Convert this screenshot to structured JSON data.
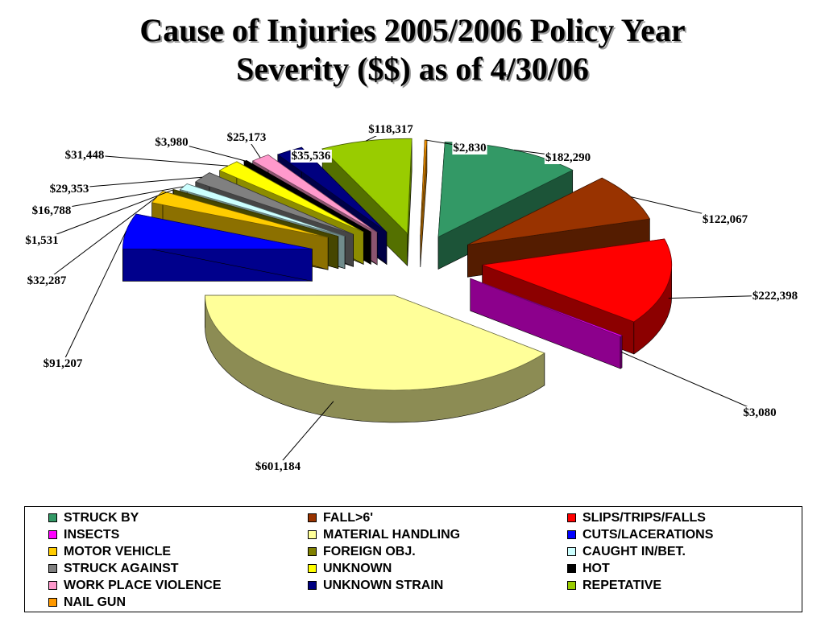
{
  "title_line1": "Cause of Injuries 2005/2006 Policy Year",
  "title_line2": "Severity ($$) as of 4/30/06",
  "chart_data": {
    "type": "pie",
    "title": "Cause of Injuries 2005/2006 Policy Year Severity ($$) as of 4/30/06",
    "legend_position": "bottom",
    "slices": [
      {
        "name": "STRUCK BY",
        "value": 182290,
        "label": "$182,290",
        "color": "#339966"
      },
      {
        "name": "FALL>6'",
        "value": 122067,
        "label": "$122,067",
        "color": "#993300"
      },
      {
        "name": "SLIPS/TRIPS/FALLS",
        "value": 222398,
        "label": "$222,398",
        "color": "#ff0000"
      },
      {
        "name": "INSECTS",
        "value": 3080,
        "label": "$3,080",
        "color": "#ff00ff"
      },
      {
        "name": "MATERIAL HANDLING",
        "value": 601184,
        "label": "$601,184",
        "color": "#ffff99"
      },
      {
        "name": "CUTS/LACERATIONS",
        "value": 91207,
        "label": "$91,207",
        "color": "#0000ff"
      },
      {
        "name": "MOTOR VEHICLE",
        "value": 32287,
        "label": "$32,287",
        "color": "#ffcc00"
      },
      {
        "name": "FOREIGN OBJ.",
        "value": 1531,
        "label": "$1,531",
        "color": "#808000"
      },
      {
        "name": "CAUGHT IN/BET.",
        "value": 16788,
        "label": "$16,788",
        "color": "#ccffff"
      },
      {
        "name": "STRUCK AGAINST",
        "value": 29353,
        "label": "$29,353",
        "color": "#808080"
      },
      {
        "name": "UNKNOWN",
        "value": 31448,
        "label": "$31,448",
        "color": "#ffff00"
      },
      {
        "name": "HOT",
        "value": 3980,
        "label": "$3,980",
        "color": "#000000"
      },
      {
        "name": "WORK PLACE VIOLENCE",
        "value": 25173,
        "label": "$25,173",
        "color": "#ff99cc"
      },
      {
        "name": "UNKNOWN STRAIN",
        "value": 35536,
        "label": "$35,536",
        "color": "#000080"
      },
      {
        "name": "REPETATIVE",
        "value": 118317,
        "label": "$118,317",
        "color": "#99cc00"
      },
      {
        "name": "NAIL GUN",
        "value": 2830,
        "label": "$2,830",
        "color": "#ff9900"
      }
    ]
  },
  "legend": [
    {
      "label": "STRUCK BY",
      "color": "#339966"
    },
    {
      "label": "FALL>6'",
      "color": "#993300"
    },
    {
      "label": "SLIPS/TRIPS/FALLS",
      "color": "#ff0000"
    },
    {
      "label": "INSECTS",
      "color": "#ff00ff"
    },
    {
      "label": "MATERIAL HANDLING",
      "color": "#ffff99"
    },
    {
      "label": "CUTS/LACERATIONS",
      "color": "#0000ff"
    },
    {
      "label": "MOTOR VEHICLE",
      "color": "#ffcc00"
    },
    {
      "label": "FOREIGN OBJ.",
      "color": "#808000"
    },
    {
      "label": "CAUGHT IN/BET.",
      "color": "#ccffff"
    },
    {
      "label": "STRUCK AGAINST",
      "color": "#808080"
    },
    {
      "label": "UNKNOWN",
      "color": "#ffff00"
    },
    {
      "label": "HOT",
      "color": "#000000"
    },
    {
      "label": "WORK PLACE VIOLENCE",
      "color": "#ff99cc"
    },
    {
      "label": "UNKNOWN STRAIN",
      "color": "#000080"
    },
    {
      "label": "REPETATIVE",
      "color": "#99cc00"
    },
    {
      "label": "NAIL GUN",
      "color": "#ff9900"
    }
  ]
}
